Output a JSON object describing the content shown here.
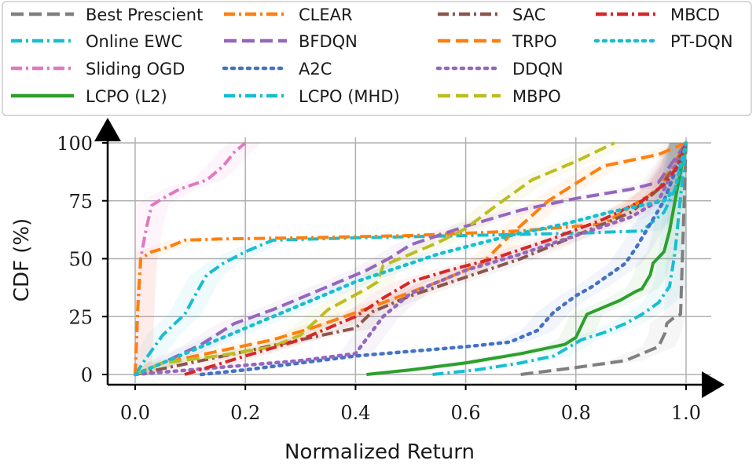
{
  "chart_data": {
    "type": "line",
    "title": "",
    "xlabel": "Normalized Return",
    "ylabel": "CDF (%)",
    "xlim": [
      -0.05,
      1.05
    ],
    "ylim": [
      0,
      100
    ],
    "xticks": [
      0.0,
      0.2,
      0.4,
      0.6,
      0.8,
      1.0
    ],
    "xtick_labels": [
      "0.0",
      "0.2",
      "0.4",
      "0.6",
      "0.8",
      "1.0"
    ],
    "yticks": [
      0,
      25,
      50,
      75,
      100
    ],
    "ytick_labels": [
      "0",
      "25",
      "50",
      "75",
      "100"
    ],
    "grid": true,
    "legend_position": "top",
    "series": [
      {
        "name": "Best Prescient",
        "color": "#7f7f7f",
        "dash": "dashed",
        "x": [
          0.7,
          0.8,
          0.89,
          0.95,
          0.962,
          0.965,
          0.975,
          0.99,
          1.0
        ],
        "y": [
          0,
          3,
          6,
          12,
          18,
          22,
          24,
          26,
          100
        ]
      },
      {
        "name": "Online EWC",
        "color": "#17becf",
        "dash": "dashdot",
        "x": [
          0.0,
          0.02,
          0.05,
          0.09,
          0.12,
          0.13,
          0.16,
          0.2,
          0.25,
          0.4,
          0.6,
          0.8,
          0.92,
          0.96,
          0.98,
          1.0
        ],
        "y": [
          0,
          7,
          17,
          26,
          39,
          43,
          48,
          53,
          58,
          59,
          60,
          61,
          62,
          70,
          80,
          100
        ]
      },
      {
        "name": "Sliding OGD",
        "color": "#e377c2",
        "dash": "dashdot",
        "x": [
          0.0,
          0.005,
          0.01,
          0.02,
          0.03,
          0.05,
          0.08,
          0.13,
          0.16,
          0.18,
          0.2
        ],
        "y": [
          0,
          30,
          50,
          63,
          73,
          76,
          80,
          84,
          90,
          96,
          100
        ]
      },
      {
        "name": "LCPO (L2)",
        "color": "#2ca02c",
        "dash": "solid",
        "x": [
          0.42,
          0.5,
          0.6,
          0.7,
          0.78,
          0.8,
          0.82,
          0.85,
          0.88,
          0.91,
          0.92,
          0.935,
          0.94,
          0.96,
          0.97,
          0.98,
          1.0
        ],
        "y": [
          0,
          2,
          5,
          9,
          13,
          16,
          26,
          29,
          32,
          36,
          37,
          43,
          48,
          53,
          62,
          75,
          100
        ]
      },
      {
        "name": "CLEAR",
        "color": "#ff7f0e",
        "dash": "dashdot",
        "x": [
          0.0,
          0.005,
          0.01,
          0.03,
          0.06,
          0.09,
          0.15,
          0.3,
          0.5,
          0.7,
          0.85,
          0.95,
          1.0
        ],
        "y": [
          0,
          30,
          50,
          53,
          55,
          58,
          58.5,
          59,
          60,
          62,
          65,
          80,
          100
        ]
      },
      {
        "name": "BFDQN",
        "color": "#9467bd",
        "dash": "dashed",
        "x": [
          0.0,
          0.05,
          0.12,
          0.18,
          0.25,
          0.3,
          0.35,
          0.42,
          0.46,
          0.5,
          0.6,
          0.7,
          0.8,
          0.9,
          0.95,
          1.0
        ],
        "y": [
          0,
          5,
          13,
          22,
          28,
          33,
          38,
          45,
          50,
          56,
          64,
          71,
          76,
          80,
          83,
          100
        ]
      },
      {
        "name": "A2C",
        "color": "#4472c4",
        "dash": "dotted",
        "x": [
          0.12,
          0.2,
          0.3,
          0.4,
          0.5,
          0.6,
          0.68,
          0.73,
          0.76,
          0.8,
          0.83,
          0.86,
          0.89,
          0.91,
          0.93,
          0.96,
          1.0
        ],
        "y": [
          0,
          2,
          5,
          8,
          10,
          12,
          14,
          19,
          27,
          34,
          38,
          43,
          48,
          55,
          63,
          75,
          100
        ]
      },
      {
        "name": "LCPO (MHD)",
        "color": "#17becf",
        "dash": "dashdot",
        "x": [
          0.54,
          0.62,
          0.7,
          0.76,
          0.81,
          0.85,
          0.89,
          0.92,
          0.95,
          0.97,
          0.98,
          1.0
        ],
        "y": [
          0,
          2,
          5,
          8,
          15,
          18,
          22,
          26,
          31,
          38,
          53,
          100
        ]
      },
      {
        "name": "SAC",
        "color": "#8c564b",
        "dash": "dashdot",
        "x": [
          0.0,
          0.1,
          0.2,
          0.3,
          0.4,
          0.43,
          0.5,
          0.6,
          0.7,
          0.8,
          0.9,
          0.95,
          0.98,
          1.0
        ],
        "y": [
          0,
          5,
          10,
          15,
          20,
          27,
          34,
          42,
          50,
          60,
          70,
          80,
          90,
          100
        ]
      },
      {
        "name": "TRPO",
        "color": "#ff7f0e",
        "dash": "dashed",
        "x": [
          0.0,
          0.05,
          0.15,
          0.25,
          0.32,
          0.38,
          0.45,
          0.55,
          0.63,
          0.68,
          0.75,
          0.85,
          0.95,
          1.0
        ],
        "y": [
          0,
          5,
          10,
          15,
          20,
          25,
          31,
          40,
          48,
          60,
          75,
          90,
          95,
          100
        ]
      },
      {
        "name": "DDQN",
        "color": "#9467bd",
        "dash": "dotted",
        "x": [
          0.0,
          0.1,
          0.2,
          0.3,
          0.4,
          0.45,
          0.5,
          0.6,
          0.7,
          0.8,
          0.9,
          0.95,
          1.0
        ],
        "y": [
          0,
          2,
          4,
          6,
          9,
          25,
          35,
          45,
          52,
          60,
          68,
          75,
          100
        ]
      },
      {
        "name": "MBPO",
        "color": "#bcbd22",
        "dash": "dashed",
        "x": [
          0.0,
          0.05,
          0.15,
          0.25,
          0.3,
          0.35,
          0.42,
          0.44,
          0.45,
          0.5,
          0.55,
          0.6,
          0.65,
          0.72,
          0.8,
          0.87
        ],
        "y": [
          0,
          5,
          8,
          12,
          17,
          28,
          37,
          40,
          47,
          52,
          57,
          63,
          72,
          84,
          92,
          100
        ]
      },
      {
        "name": "MBCD",
        "color": "#d62728",
        "dash": "dashdot",
        "x": [
          0.09,
          0.2,
          0.3,
          0.35,
          0.4,
          0.45,
          0.5,
          0.57,
          0.65,
          0.75,
          0.85,
          0.92,
          0.96,
          0.985,
          1.0
        ],
        "y": [
          0,
          8,
          15,
          20,
          25,
          33,
          40,
          45,
          50,
          58,
          67,
          75,
          82,
          90,
          100
        ]
      },
      {
        "name": "PT-DQN",
        "color": "#17becf",
        "dash": "dotted",
        "x": [
          0.0,
          0.1,
          0.25,
          0.4,
          0.55,
          0.68,
          0.78,
          0.86,
          0.92,
          0.96,
          0.98,
          1.0
        ],
        "y": [
          0,
          10,
          25,
          40,
          52,
          60,
          65,
          70,
          73,
          75,
          80,
          100
        ]
      }
    ]
  }
}
